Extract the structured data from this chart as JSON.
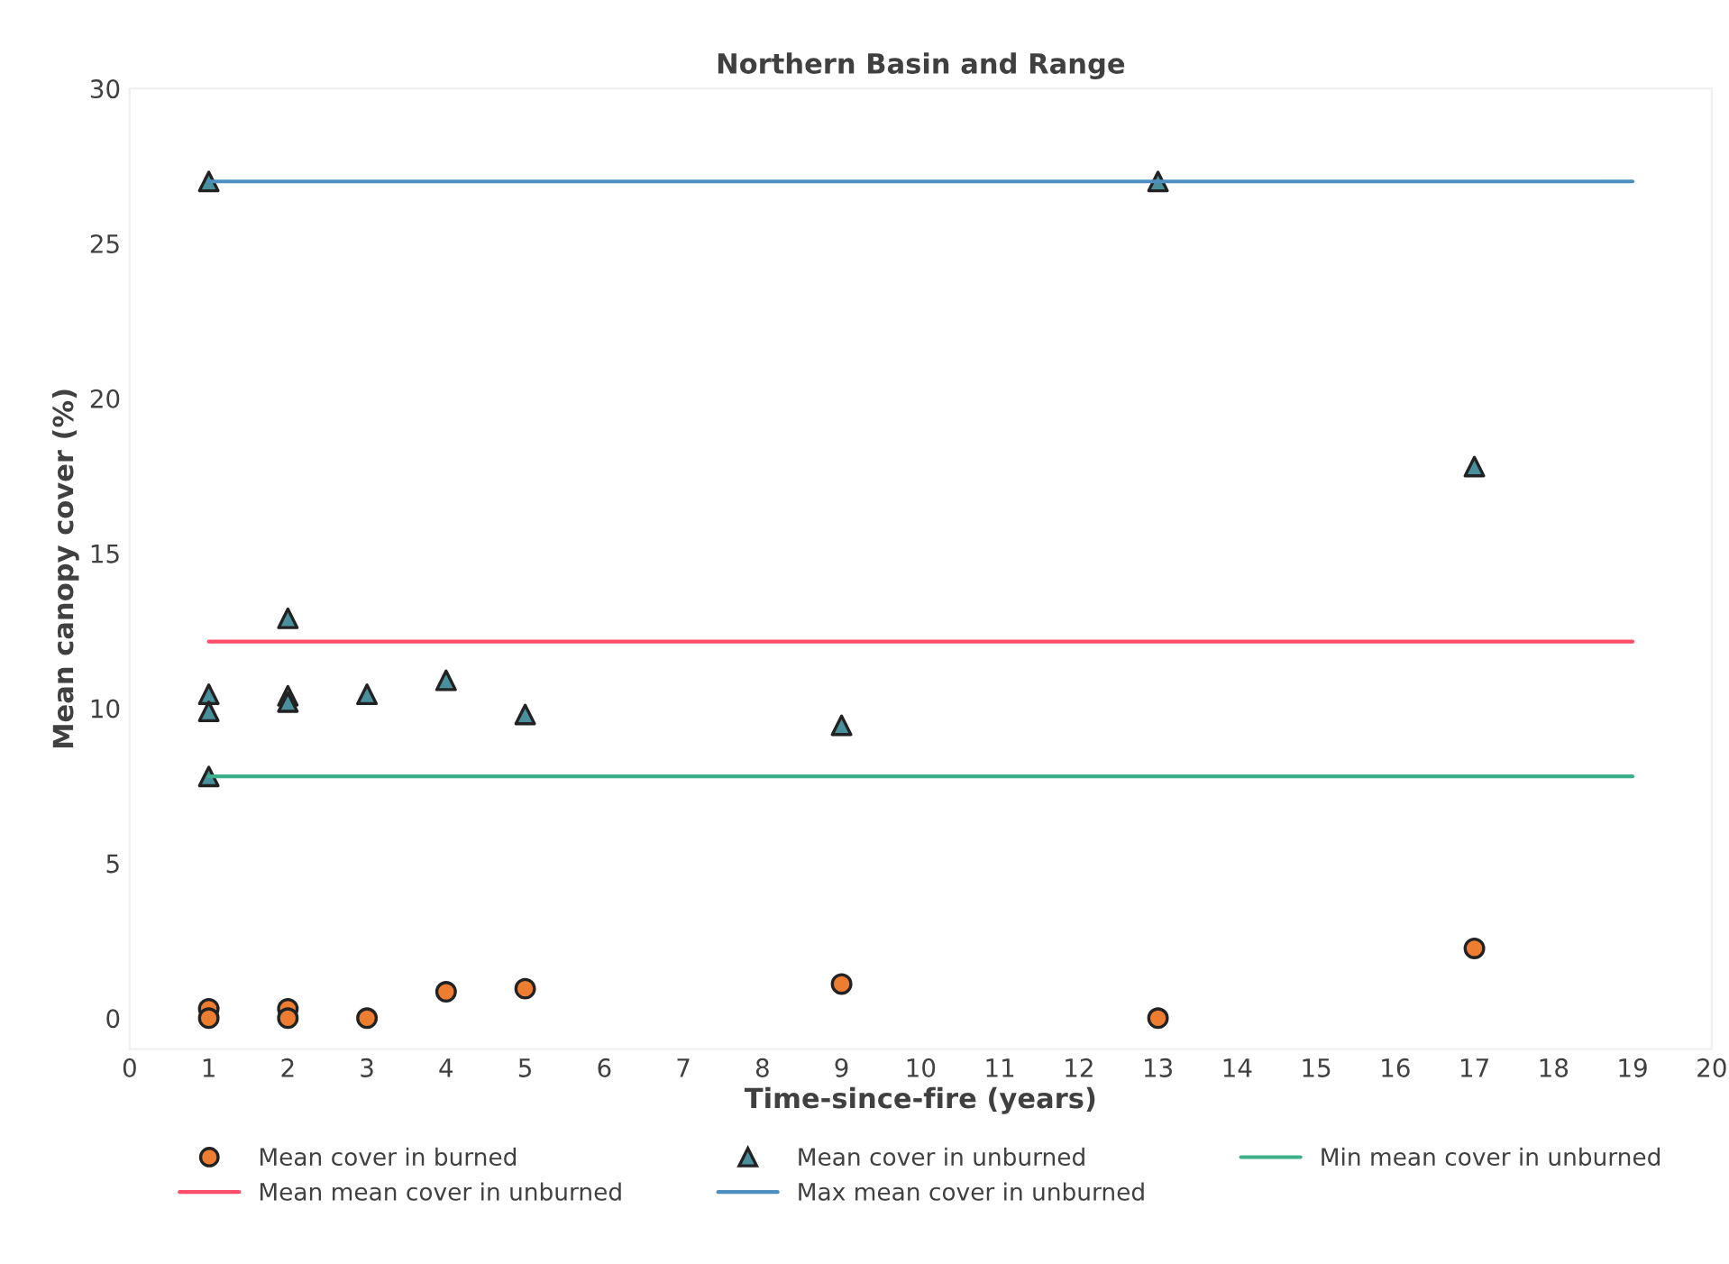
{
  "chart_data": {
    "type": "scatter",
    "title": "Northern Basin and Range",
    "xlabel": "Time-since-fire (years)",
    "ylabel": "Mean canopy cover (%)",
    "xlim": [
      0,
      20
    ],
    "xticks": [
      0,
      1,
      2,
      3,
      4,
      5,
      6,
      7,
      8,
      9,
      10,
      11,
      12,
      13,
      14,
      15,
      16,
      17,
      18,
      19,
      20
    ],
    "ylim": [
      -1,
      30
    ],
    "yticks": [
      0,
      5,
      10,
      15,
      20,
      25,
      30
    ],
    "grid": false,
    "legend": "bottom",
    "series": [
      {
        "name": "Mean cover in burned",
        "marker": "circle",
        "color": "#ed7d31",
        "x": [
          1,
          1,
          2,
          2,
          3,
          4,
          5,
          9,
          13,
          17
        ],
        "values": [
          0.3,
          0,
          0.3,
          0,
          0,
          0.85,
          0.95,
          1.1,
          0,
          2.25
        ]
      },
      {
        "name": "Mean cover in unburned",
        "marker": "triangle",
        "color": "#4a8f9c",
        "x": [
          1,
          1,
          1,
          1,
          2,
          2,
          2,
          3,
          4,
          5,
          9,
          13,
          17
        ],
        "values": [
          27,
          10.45,
          9.9,
          7.8,
          12.9,
          10.4,
          10.2,
          10.45,
          10.9,
          9.8,
          9.45,
          27,
          17.8
        ]
      },
      {
        "name": "Min mean cover in unburned",
        "type": "line",
        "marker": "none",
        "color": "#3cb08a",
        "x": [
          1,
          19
        ],
        "values": [
          7.8,
          7.8
        ]
      },
      {
        "name": "Mean mean cover in unburned",
        "type": "line",
        "marker": "none",
        "color": "#ff4d6a",
        "x": [
          1,
          19
        ],
        "values": [
          12.15,
          12.15
        ]
      },
      {
        "name": "Max mean cover in unburned",
        "type": "line",
        "marker": "none",
        "color": "#4e8fc0",
        "x": [
          1,
          19
        ],
        "values": [
          27,
          27
        ]
      }
    ]
  }
}
